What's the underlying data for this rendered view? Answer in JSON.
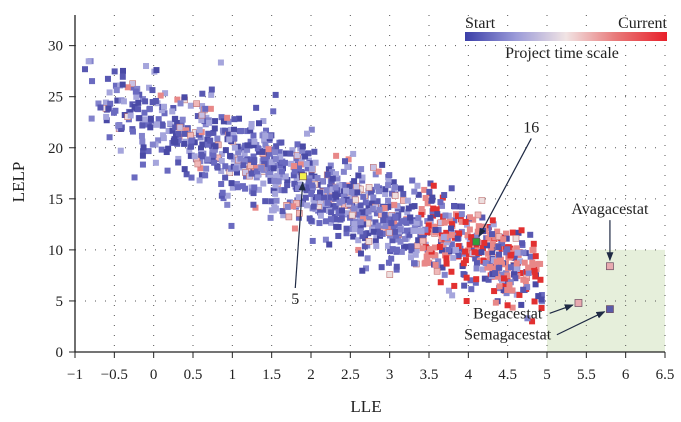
{
  "chart_data": {
    "type": "scatter",
    "title": "",
    "xlabel": "LLE",
    "ylabel": "LELP",
    "xlim": [
      -1,
      6.5
    ],
    "ylim": [
      0,
      33
    ],
    "x_ticks": [
      -1,
      -0.5,
      0,
      0.5,
      1,
      1.5,
      2,
      2.5,
      3,
      3.5,
      4,
      4.5,
      5,
      5.5,
      6,
      6.5
    ],
    "x_tick_labels": [
      "−1",
      "−0.5",
      "0",
      "0.5",
      "1",
      "1.5",
      "2",
      "2.5",
      "3",
      "3.5",
      "4",
      "4.5",
      "5",
      "5.5",
      "6",
      "6.5"
    ],
    "y_ticks": [
      0,
      5,
      10,
      15,
      20,
      25,
      30
    ],
    "y_tick_labels": [
      "0",
      "5",
      "10",
      "15",
      "20",
      "25",
      "30"
    ],
    "grid": "dotted",
    "color_scale": {
      "title": "Project time scale",
      "start_label": "Start",
      "end_label": "Current",
      "colors": [
        "#3b3fa8",
        "#9a9ad8",
        "#f1e4e4",
        "#e87878",
        "#e8202a"
      ]
    },
    "highlight_region": {
      "x": [
        5,
        6.5
      ],
      "y": [
        0,
        10
      ],
      "color": "#e6efdb"
    },
    "cloud_model": {
      "description": "dense band of points, LELP decreasing as LLE increases",
      "x_range": [
        -1,
        5
      ],
      "intercept": 22.5,
      "slope": -3.1,
      "spread": 2.1
    },
    "annotations": [
      {
        "text": "16",
        "point": [
          4.1,
          10.8
        ],
        "label_at": [
          4.8,
          21.5
        ],
        "marker_color": "#2fa03a"
      },
      {
        "text": "5",
        "point": [
          1.9,
          17.2
        ],
        "label_at": [
          1.8,
          4.7
        ],
        "marker_color": "#f2f04a"
      },
      {
        "text": "Avagacestat",
        "point": [
          5.8,
          8.4
        ],
        "label_at": [
          5.8,
          13.5
        ],
        "marker_color": "#e8aab0"
      },
      {
        "text": "Begacestat",
        "point": [
          5.4,
          4.8
        ],
        "label_at": [
          4.5,
          3.3
        ],
        "marker_color": "#e8aab0"
      },
      {
        "text": "Semagacestat",
        "point": [
          5.8,
          4.2
        ],
        "label_at": [
          4.5,
          1.2
        ],
        "marker_color": "#5a5aa8"
      }
    ]
  }
}
